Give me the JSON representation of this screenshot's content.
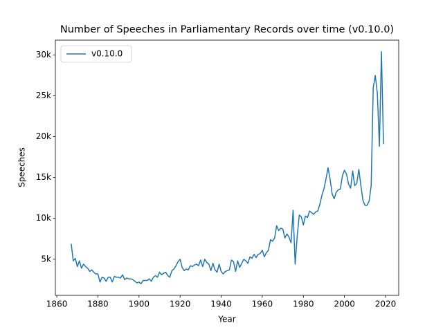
{
  "chart_data": {
    "type": "line",
    "title": "Number of Speeches in Parliamentary Records over time (v0.10.0)",
    "x_label": "Year",
    "y_label": "Speeches",
    "x": [
      1867,
      1868,
      1869,
      1870,
      1871,
      1872,
      1873,
      1874,
      1875,
      1876,
      1877,
      1878,
      1879,
      1880,
      1881,
      1882,
      1883,
      1884,
      1885,
      1886,
      1887,
      1888,
      1889,
      1890,
      1891,
      1892,
      1893,
      1894,
      1895,
      1896,
      1897,
      1898,
      1899,
      1900,
      1901,
      1902,
      1903,
      1904,
      1905,
      1906,
      1907,
      1908,
      1909,
      1910,
      1911,
      1912,
      1913,
      1914,
      1915,
      1916,
      1917,
      1918,
      1919,
      1920,
      1921,
      1922,
      1923,
      1924,
      1925,
      1926,
      1927,
      1928,
      1929,
      1930,
      1931,
      1932,
      1933,
      1934,
      1935,
      1936,
      1937,
      1938,
      1939,
      1940,
      1941,
      1942,
      1943,
      1944,
      1945,
      1946,
      1947,
      1948,
      1949,
      1950,
      1951,
      1952,
      1953,
      1954,
      1955,
      1956,
      1957,
      1958,
      1959,
      1960,
      1961,
      1962,
      1963,
      1964,
      1965,
      1966,
      1967,
      1968,
      1969,
      1970,
      1971,
      1972,
      1973,
      1974,
      1975,
      1976,
      1977,
      1978,
      1979,
      1980,
      1981,
      1982,
      1983,
      1984,
      1985,
      1986,
      1987,
      1988,
      1989,
      1990,
      1991,
      1992,
      1993,
      1994,
      1995,
      1996,
      1997,
      1998,
      1999,
      2000,
      2001,
      2002,
      2003,
      2004,
      2005,
      2006,
      2007,
      2008,
      2009,
      2010,
      2011,
      2012,
      2013,
      2014,
      2015,
      2016,
      2017,
      2018,
      2019
    ],
    "series": [
      {
        "name": "v0.10.0",
        "color": "#1f77b4",
        "values": [
          6900,
          4800,
          5100,
          4100,
          4800,
          3900,
          4400,
          4100,
          3900,
          3500,
          3700,
          3400,
          3200,
          3200,
          2200,
          2800,
          2700,
          2300,
          2800,
          2800,
          2200,
          2900,
          2800,
          2800,
          2700,
          3100,
          2500,
          2700,
          2600,
          2600,
          2500,
          2300,
          2100,
          2200,
          2000,
          2400,
          2400,
          2400,
          2600,
          2300,
          2800,
          3000,
          2800,
          3400,
          3100,
          3300,
          3400,
          3000,
          2800,
          3600,
          3800,
          4200,
          4700,
          5000,
          4000,
          3600,
          3800,
          3700,
          4200,
          4100,
          4300,
          4400,
          4200,
          4900,
          4100,
          5000,
          4600,
          4400,
          3600,
          4500,
          3700,
          3400,
          4400,
          3500,
          3200,
          3500,
          3600,
          3700,
          4900,
          4700,
          3500,
          4800,
          4000,
          4500,
          5000,
          4800,
          4500,
          5300,
          5100,
          5600,
          5200,
          5600,
          5700,
          6100,
          5300,
          5800,
          6100,
          7400,
          7200,
          7600,
          9100,
          8500,
          8800,
          8700,
          7600,
          8100,
          7700,
          7000,
          11000,
          4400,
          7800,
          10400,
          10200,
          9200,
          10300,
          10100,
          10900,
          10700,
          10500,
          10800,
          10900,
          11700,
          12800,
          13600,
          14800,
          16200,
          14800,
          13000,
          12400,
          13200,
          13500,
          13600,
          15200,
          15900,
          15400,
          14200,
          13700,
          15800,
          14000,
          14300,
          16000,
          14000,
          12200,
          11600,
          11600,
          12100,
          14000,
          26000,
          27500,
          25300,
          18800,
          30400,
          19100
        ]
      }
    ],
    "xlim": [
      1859.3,
      2026.4
    ],
    "ylim": [
      580,
      31820
    ],
    "xticks": [
      1860,
      1880,
      1900,
      1920,
      1940,
      1960,
      1980,
      2000,
      2020
    ],
    "yticks": [
      {
        "value": 5000,
        "label": "5k"
      },
      {
        "value": 10000,
        "label": "10k"
      },
      {
        "value": 15000,
        "label": "15k"
      },
      {
        "value": 20000,
        "label": "20k"
      },
      {
        "value": 25000,
        "label": "25k"
      },
      {
        "value": 30000,
        "label": "30k"
      }
    ],
    "legend": "upper left"
  }
}
